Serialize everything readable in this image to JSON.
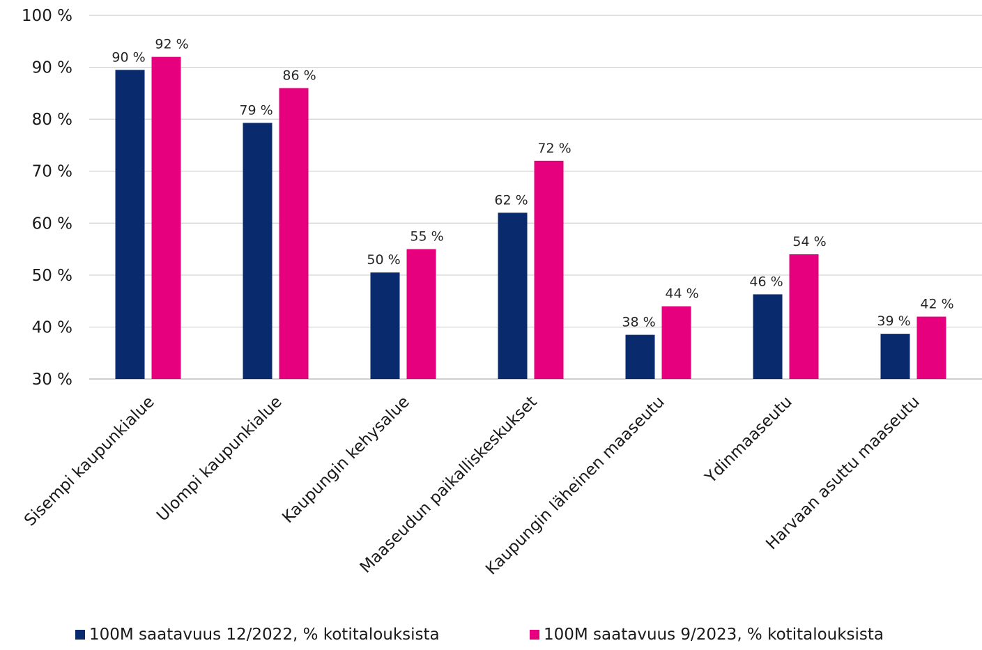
{
  "chart_data": {
    "type": "bar",
    "title": "",
    "xlabel": "",
    "ylabel": "",
    "ylim": [
      30,
      100
    ],
    "yticks": [
      30,
      40,
      50,
      60,
      70,
      80,
      90,
      100
    ],
    "ytick_suffix": " %",
    "grid": true,
    "legend_position": "bottom",
    "categories": [
      "Sisempi kaupunkialue",
      "Ulompi kaupunkialue",
      "Kaupungin kehysalue",
      "Maaseudun paikalliskeskukset",
      "Kaupungin läheinen maaseutu",
      "Ydinmaaseutu",
      "Harvaan asuttu maaseutu"
    ],
    "series": [
      {
        "name": "100M saatavuus 12/2022, % kotitalouksista",
        "color": "#0a2a6e",
        "values": [
          89.5,
          79.3,
          50.5,
          62,
          38.5,
          46.3,
          38.7
        ],
        "labels": [
          "90 %",
          "79 %",
          "50 %",
          "62 %",
          "38 %",
          "46 %",
          "39 %"
        ]
      },
      {
        "name": "100M saatavuus 9/2023, % kotitalouksista",
        "color": "#e6007e",
        "values": [
          92,
          86,
          55,
          72,
          44,
          54,
          42
        ],
        "labels": [
          "92 %",
          "86 %",
          "55 %",
          "72 %",
          "44 %",
          "54 %",
          "42 %"
        ]
      }
    ]
  }
}
